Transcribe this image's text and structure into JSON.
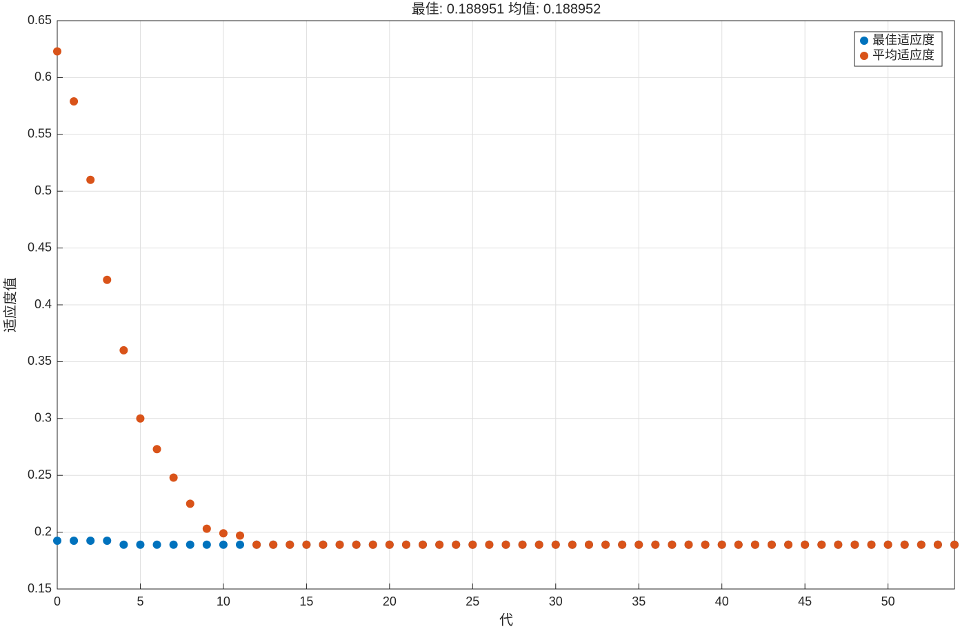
{
  "chart_data": {
    "type": "scatter",
    "title": "最佳: 0.188951 均值: 0.188952",
    "xlabel": "代",
    "ylabel": "适应度值",
    "x": [
      0,
      1,
      2,
      3,
      4,
      5,
      6,
      7,
      8,
      9,
      10,
      11,
      12,
      13,
      14,
      15,
      16,
      17,
      18,
      19,
      20,
      21,
      22,
      23,
      24,
      25,
      26,
      27,
      28,
      29,
      30,
      31,
      32,
      33,
      34,
      35,
      36,
      37,
      38,
      39,
      40,
      41,
      42,
      43,
      44,
      45,
      46,
      47,
      48,
      49,
      50,
      51,
      52,
      53,
      54
    ],
    "series": [
      {
        "name": "最佳适应度",
        "color": "#0072BD",
        "values": [
          0.1925,
          0.1925,
          0.1925,
          0.1925,
          0.189,
          0.189,
          0.189,
          0.189,
          0.189,
          0.189,
          0.189,
          0.189,
          0.189,
          0.189,
          0.189,
          0.189,
          0.189,
          0.189,
          0.189,
          0.189,
          0.189,
          0.189,
          0.189,
          0.189,
          0.189,
          0.189,
          0.189,
          0.189,
          0.189,
          0.189,
          0.189,
          0.189,
          0.189,
          0.189,
          0.189,
          0.189,
          0.189,
          0.189,
          0.189,
          0.189,
          0.189,
          0.189,
          0.189,
          0.189,
          0.189,
          0.189,
          0.189,
          0.189,
          0.189,
          0.189,
          0.189,
          0.189,
          0.189,
          0.189,
          0.189
        ]
      },
      {
        "name": "平均适应度",
        "color": "#D95319",
        "values": [
          0.623,
          0.579,
          0.51,
          0.422,
          0.36,
          0.3,
          0.273,
          0.248,
          0.225,
          0.203,
          0.199,
          0.197,
          0.189,
          0.189,
          0.189,
          0.189,
          0.189,
          0.189,
          0.189,
          0.189,
          0.189,
          0.189,
          0.189,
          0.189,
          0.189,
          0.189,
          0.189,
          0.189,
          0.189,
          0.189,
          0.189,
          0.189,
          0.189,
          0.189,
          0.189,
          0.189,
          0.189,
          0.189,
          0.189,
          0.189,
          0.189,
          0.189,
          0.189,
          0.189,
          0.189,
          0.189,
          0.189,
          0.189,
          0.189,
          0.189,
          0.189,
          0.189,
          0.189,
          0.189,
          0.189
        ]
      }
    ],
    "xlim": [
      0,
      54
    ],
    "xticks": [
      0,
      5,
      10,
      15,
      20,
      25,
      30,
      35,
      40,
      45,
      50
    ],
    "ylim": [
      0.15,
      0.65
    ],
    "yticks": [
      0.15,
      0.2,
      0.25,
      0.3,
      0.35,
      0.4,
      0.45,
      0.5,
      0.55,
      0.6,
      0.65
    ],
    "grid": true,
    "legend": "northeast"
  }
}
